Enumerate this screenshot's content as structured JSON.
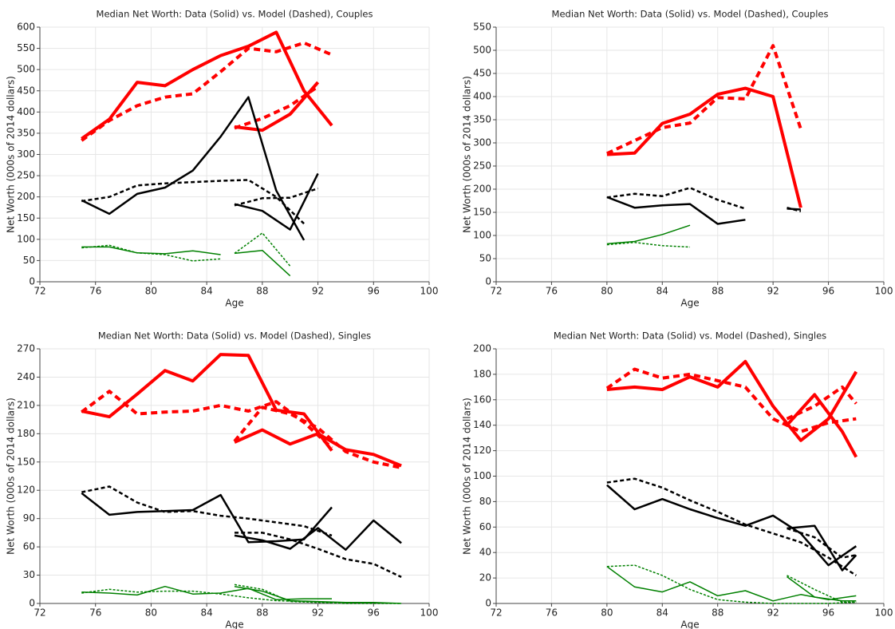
{
  "chart_data": [
    {
      "type": "line",
      "title": "Median Net Worth: Data (Solid) vs. Model (Dashed), Couples",
      "x_label": "Age",
      "y_label": "Net Worth (000s of 2014 dollars)",
      "xlim": [
        72,
        100
      ],
      "xticks": [
        72,
        76,
        80,
        84,
        88,
        92,
        96,
        100
      ],
      "ylim": [
        0,
        600
      ],
      "yticks": [
        0,
        50,
        100,
        150,
        200,
        250,
        300,
        350,
        400,
        450,
        500,
        550,
        600
      ],
      "grid": true,
      "series": [
        {
          "color": "#ff0000",
          "dash": false,
          "width": 4,
          "x": [
            75,
            77,
            79,
            81,
            83,
            85,
            87,
            89,
            91,
            93
          ],
          "values": [
            337,
            383,
            470,
            462,
            500,
            533,
            555,
            588,
            450,
            368
          ]
        },
        {
          "color": "#ff0000",
          "dash": true,
          "width": 4,
          "x": [
            75,
            77,
            79,
            81,
            83,
            85,
            87,
            89,
            91,
            93
          ],
          "values": [
            333,
            380,
            415,
            435,
            443,
            495,
            550,
            542,
            563,
            535
          ]
        },
        {
          "color": "#ff0000",
          "dash": false,
          "width": 4,
          "x": [
            86,
            88,
            90,
            92
          ],
          "values": [
            365,
            357,
            395,
            470
          ]
        },
        {
          "color": "#ff0000",
          "dash": true,
          "width": 4,
          "x": [
            86,
            88,
            90,
            92
          ],
          "values": [
            362,
            385,
            415,
            460
          ]
        },
        {
          "color": "#000000",
          "dash": false,
          "width": 2.5,
          "x": [
            75,
            77,
            79,
            81,
            83,
            85,
            87,
            89,
            91
          ],
          "values": [
            192,
            160,
            207,
            222,
            262,
            342,
            435,
            215,
            98
          ]
        },
        {
          "color": "#000000",
          "dash": true,
          "width": 2.5,
          "x": [
            75,
            77,
            79,
            81,
            83,
            85,
            87,
            89,
            91
          ],
          "values": [
            190,
            200,
            227,
            232,
            235,
            238,
            240,
            200,
            137
          ]
        },
        {
          "color": "#000000",
          "dash": false,
          "width": 2.5,
          "x": [
            86,
            88,
            90,
            92
          ],
          "values": [
            183,
            167,
            123,
            255
          ]
        },
        {
          "color": "#000000",
          "dash": true,
          "width": 2.5,
          "x": [
            86,
            88,
            90,
            92
          ],
          "values": [
            180,
            197,
            198,
            220
          ]
        },
        {
          "color": "#008000",
          "dash": false,
          "width": 1.5,
          "x": [
            75,
            77,
            79,
            81,
            83,
            85
          ],
          "values": [
            82,
            82,
            68,
            66,
            73,
            64
          ]
        },
        {
          "color": "#008000",
          "dash": true,
          "width": 1.5,
          "x": [
            75,
            77,
            79,
            81,
            83,
            85
          ],
          "values": [
            80,
            86,
            68,
            64,
            49,
            54
          ]
        },
        {
          "color": "#008000",
          "dash": false,
          "width": 1.5,
          "x": [
            86,
            88,
            90
          ],
          "values": [
            67,
            74,
            14
          ]
        },
        {
          "color": "#008000",
          "dash": true,
          "width": 1.5,
          "x": [
            86,
            88,
            90
          ],
          "values": [
            67,
            115,
            37
          ]
        }
      ]
    },
    {
      "type": "line",
      "title": "Median Net Worth: Data (Solid) vs. Model (Dashed), Couples",
      "x_label": "Age",
      "y_label": "Net Worth (000s of 2014 dollars)",
      "xlim": [
        72,
        100
      ],
      "xticks": [
        72,
        76,
        80,
        84,
        88,
        92,
        96,
        100
      ],
      "ylim": [
        0,
        550
      ],
      "yticks": [
        0,
        50,
        100,
        150,
        200,
        250,
        300,
        350,
        400,
        450,
        500,
        550
      ],
      "grid": true,
      "series": [
        {
          "color": "#ff0000",
          "dash": false,
          "width": 4,
          "x": [
            80,
            82,
            84,
            86,
            88,
            90,
            92,
            94
          ],
          "values": [
            275,
            278,
            342,
            362,
            405,
            418,
            400,
            160
          ]
        },
        {
          "color": "#ff0000",
          "dash": true,
          "width": 4,
          "x": [
            80,
            82,
            84,
            86,
            88,
            90,
            92,
            94
          ],
          "values": [
            277,
            305,
            333,
            343,
            398,
            395,
            510,
            330
          ]
        },
        {
          "color": "#000000",
          "dash": false,
          "width": 2.5,
          "x": [
            80,
            82,
            84,
            86,
            88,
            90
          ],
          "values": [
            183,
            160,
            165,
            168,
            125,
            134
          ]
        },
        {
          "color": "#000000",
          "dash": true,
          "width": 2.5,
          "x": [
            80,
            82,
            84,
            86,
            88,
            90
          ],
          "values": [
            182,
            190,
            185,
            203,
            177,
            158
          ]
        },
        {
          "color": "#000000",
          "dash": false,
          "width": 2.5,
          "x": [
            93,
            94
          ],
          "values": [
            158,
            156
          ]
        },
        {
          "color": "#000000",
          "dash": true,
          "width": 2.5,
          "x": [
            93,
            94
          ],
          "values": [
            160,
            152
          ]
        },
        {
          "color": "#008000",
          "dash": false,
          "width": 1.5,
          "x": [
            80,
            82,
            84,
            86
          ],
          "values": [
            82,
            87,
            102,
            122
          ]
        },
        {
          "color": "#008000",
          "dash": true,
          "width": 1.5,
          "x": [
            80,
            82,
            84,
            86
          ],
          "values": [
            80,
            85,
            78,
            75
          ]
        }
      ]
    },
    {
      "type": "line",
      "title": "Median Net Worth: Data (Solid) vs. Model (Dashed), Singles",
      "x_label": "Age",
      "y_label": "Net Worth (000s of 2014 dollars)",
      "xlim": [
        72,
        100
      ],
      "xticks": [
        72,
        76,
        80,
        84,
        88,
        92,
        96,
        100
      ],
      "ylim": [
        0,
        270
      ],
      "yticks": [
        0,
        30,
        60,
        90,
        120,
        150,
        180,
        210,
        240,
        270
      ],
      "grid": true,
      "series": [
        {
          "color": "#ff0000",
          "dash": false,
          "width": 4,
          "x": [
            75,
            77,
            79,
            81,
            83,
            85,
            87,
            89,
            91,
            93
          ],
          "values": [
            204,
            198,
            222,
            247,
            236,
            264,
            263,
            205,
            201,
            162
          ]
        },
        {
          "color": "#ff0000",
          "dash": true,
          "width": 4,
          "x": [
            75,
            77,
            79,
            81,
            83,
            85,
            87,
            89,
            91,
            93
          ],
          "values": [
            203,
            225,
            201,
            203,
            204,
            210,
            204,
            214,
            192,
            165
          ]
        },
        {
          "color": "#ff0000",
          "dash": false,
          "width": 4,
          "x": [
            86,
            88,
            90,
            92,
            94,
            96,
            98
          ],
          "values": [
            171,
            184,
            169,
            180,
            163,
            158,
            146
          ]
        },
        {
          "color": "#ff0000",
          "dash": true,
          "width": 4,
          "x": [
            86,
            88,
            90,
            92,
            94,
            96,
            98
          ],
          "values": [
            172,
            208,
            201,
            186,
            161,
            150,
            144
          ]
        },
        {
          "color": "#000000",
          "dash": false,
          "width": 2.5,
          "x": [
            75,
            77,
            79,
            81,
            83,
            85,
            87,
            89,
            91,
            93
          ],
          "values": [
            117,
            94,
            97,
            98,
            99,
            115,
            65,
            66,
            68,
            102
          ]
        },
        {
          "color": "#000000",
          "dash": true,
          "width": 2.5,
          "x": [
            75,
            77,
            79,
            81,
            83,
            85,
            87,
            89,
            91,
            93
          ],
          "values": [
            118,
            124,
            107,
            97,
            98,
            93,
            90,
            86,
            82,
            72
          ]
        },
        {
          "color": "#000000",
          "dash": false,
          "width": 2.5,
          "x": [
            86,
            88,
            90,
            92,
            94,
            96,
            98
          ],
          "values": [
            72,
            67,
            58,
            80,
            57,
            88,
            64
          ]
        },
        {
          "color": "#000000",
          "dash": true,
          "width": 2.5,
          "x": [
            86,
            88,
            90,
            92,
            94,
            96,
            98
          ],
          "values": [
            75,
            75,
            68,
            58,
            47,
            42,
            28
          ]
        },
        {
          "color": "#008000",
          "dash": false,
          "width": 1.5,
          "x": [
            75,
            77,
            79,
            81,
            83,
            85,
            87,
            89,
            91,
            93
          ],
          "values": [
            12,
            11,
            9,
            18,
            10,
            11,
            16,
            4,
            5,
            5
          ]
        },
        {
          "color": "#008000",
          "dash": true,
          "width": 1.5,
          "x": [
            75,
            77,
            79,
            81,
            83,
            85,
            87,
            89,
            91,
            93
          ],
          "values": [
            11,
            15,
            12,
            13,
            13,
            10,
            6,
            3,
            2,
            1
          ]
        },
        {
          "color": "#008000",
          "dash": false,
          "width": 1.5,
          "x": [
            86,
            88,
            90,
            92,
            94,
            96,
            98
          ],
          "values": [
            18,
            13,
            3,
            2,
            1,
            1,
            0
          ]
        },
        {
          "color": "#008000",
          "dash": true,
          "width": 1.5,
          "x": [
            86,
            88,
            90,
            92,
            94,
            96,
            98
          ],
          "values": [
            20,
            15,
            2,
            1,
            0,
            0,
            0
          ]
        }
      ]
    },
    {
      "type": "line",
      "title": "Median Net Worth: Data (Solid) vs. Model (Dashed), Singles",
      "x_label": "Age",
      "y_label": "Net Worth (000s of 2014 dollars)",
      "xlim": [
        72,
        100
      ],
      "xticks": [
        72,
        76,
        80,
        84,
        88,
        92,
        96,
        100
      ],
      "ylim": [
        0,
        200
      ],
      "yticks": [
        0,
        20,
        40,
        60,
        80,
        100,
        120,
        140,
        160,
        180,
        200
      ],
      "grid": true,
      "series": [
        {
          "color": "#ff0000",
          "dash": false,
          "width": 4,
          "x": [
            80,
            82,
            84,
            86,
            88,
            90,
            92,
            94,
            96,
            98
          ],
          "values": [
            168,
            170,
            168,
            178,
            170,
            190,
            155,
            128,
            145,
            182
          ]
        },
        {
          "color": "#ff0000",
          "dash": true,
          "width": 4,
          "x": [
            80,
            82,
            84,
            86,
            88,
            90,
            92,
            94,
            96,
            98
          ],
          "values": [
            169,
            184,
            177,
            180,
            175,
            170,
            145,
            135,
            142,
            145
          ]
        },
        {
          "color": "#ff0000",
          "dash": false,
          "width": 4,
          "x": [
            93,
            95,
            97,
            98
          ],
          "values": [
            140,
            164,
            135,
            115
          ]
        },
        {
          "color": "#ff0000",
          "dash": true,
          "width": 4,
          "x": [
            93,
            95,
            97,
            98
          ],
          "values": [
            145,
            155,
            170,
            157
          ]
        },
        {
          "color": "#000000",
          "dash": false,
          "width": 2.5,
          "x": [
            80,
            82,
            84,
            86,
            88,
            90,
            92,
            94,
            96,
            98
          ],
          "values": [
            93,
            74,
            82,
            74,
            67,
            61,
            69,
            55,
            30,
            45
          ]
        },
        {
          "color": "#000000",
          "dash": true,
          "width": 2.5,
          "x": [
            80,
            82,
            84,
            86,
            88,
            90,
            92,
            94,
            96,
            98
          ],
          "values": [
            95,
            98,
            91,
            81,
            72,
            62,
            55,
            48,
            36,
            22
          ]
        },
        {
          "color": "#000000",
          "dash": false,
          "width": 2.5,
          "x": [
            93,
            95,
            97,
            98
          ],
          "values": [
            59,
            61,
            26,
            38
          ]
        },
        {
          "color": "#000000",
          "dash": true,
          "width": 2.5,
          "x": [
            93,
            95,
            97,
            98
          ],
          "values": [
            59,
            52,
            36,
            38
          ]
        },
        {
          "color": "#008000",
          "dash": false,
          "width": 1.5,
          "x": [
            80,
            82,
            84,
            86,
            88,
            90,
            92,
            94,
            96,
            98
          ],
          "values": [
            29,
            13,
            9,
            17,
            6,
            10,
            2,
            7,
            3,
            6
          ]
        },
        {
          "color": "#008000",
          "dash": true,
          "width": 1.5,
          "x": [
            80,
            82,
            84,
            86,
            88,
            90,
            92,
            94,
            96,
            98
          ],
          "values": [
            29,
            30,
            22,
            11,
            3,
            1,
            0,
            0,
            0,
            1
          ]
        },
        {
          "color": "#008000",
          "dash": false,
          "width": 1.5,
          "x": [
            93,
            95,
            97,
            98
          ],
          "values": [
            21,
            5,
            2,
            2
          ]
        },
        {
          "color": "#008000",
          "dash": true,
          "width": 1.5,
          "x": [
            93,
            95,
            97,
            98
          ],
          "values": [
            22,
            11,
            1,
            1
          ]
        }
      ]
    }
  ]
}
